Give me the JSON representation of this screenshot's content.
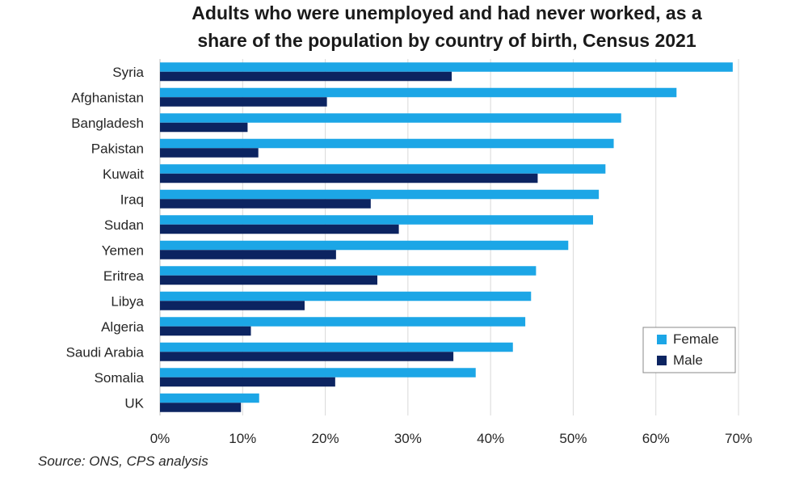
{
  "chart_data": {
    "type": "bar",
    "orientation": "horizontal",
    "title_lines": [
      "Adults who were unemployed and had never worked, as a",
      "share of the population by country of birth, Census 2021"
    ],
    "categories": [
      "Syria",
      "Afghanistan",
      "Bangladesh",
      "Pakistan",
      "Kuwait",
      "Iraq",
      "Sudan",
      "Yemen",
      "Eritrea",
      "Libya",
      "Algeria",
      "Saudi Arabia",
      "Somalia",
      "UK"
    ],
    "series": [
      {
        "name": "Female",
        "color": "#1ca6e6",
        "values": [
          69.3,
          62.5,
          55.8,
          54.9,
          53.9,
          53.1,
          52.4,
          49.4,
          45.5,
          44.9,
          44.2,
          42.7,
          38.2,
          12.0
        ]
      },
      {
        "name": "Male",
        "color": "#0c2461",
        "values": [
          35.3,
          20.2,
          10.6,
          11.9,
          45.7,
          25.5,
          28.9,
          21.3,
          26.3,
          17.5,
          11.0,
          35.5,
          21.2,
          9.8
        ]
      }
    ],
    "xlim": [
      0,
      70
    ],
    "xticks": [
      "0%",
      "10%",
      "20%",
      "30%",
      "40%",
      "50%",
      "60%",
      "70%"
    ],
    "grid": true,
    "legend": "bottom-right",
    "source": "Source: ONS, CPS analysis"
  }
}
